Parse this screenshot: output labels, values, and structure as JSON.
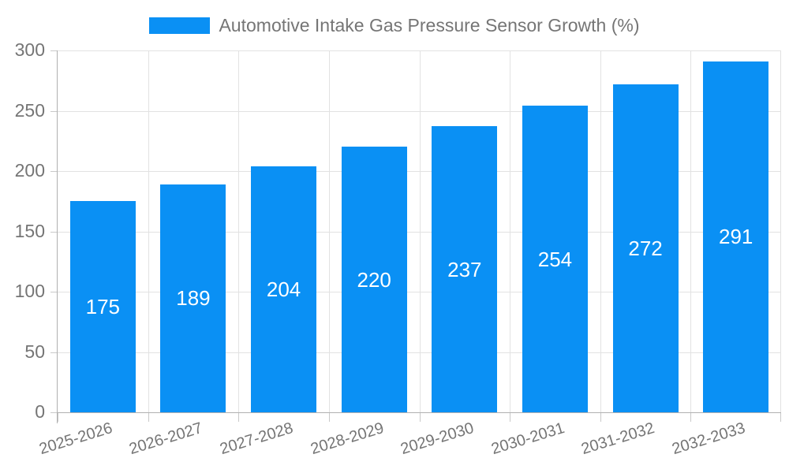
{
  "chart_data": {
    "type": "bar",
    "title": "Automotive Intake Gas Pressure Sensor Growth (%)",
    "categories": [
      "2025-2026",
      "2026-2027",
      "2027-2028",
      "2028-2029",
      "2029-2030",
      "2030-2031",
      "2031-2032",
      "2032-2033"
    ],
    "values": [
      175,
      189,
      204,
      220,
      237,
      254,
      272,
      291
    ],
    "xlabel": "",
    "ylabel": "",
    "ylim": [
      0,
      300
    ],
    "ytick_step": 50,
    "yticks": [
      0,
      50,
      100,
      150,
      200,
      250,
      300
    ],
    "grid": true,
    "legend_position": "top",
    "value_labels": "inside-center",
    "colors": {
      "bar": "#0a90f4",
      "text": "#757575",
      "grid": "#e2e2e2",
      "axis": "#b0b0b0",
      "tick": "#c9c9c9",
      "value_label": "#ffffff",
      "background": "#ffffff"
    }
  }
}
